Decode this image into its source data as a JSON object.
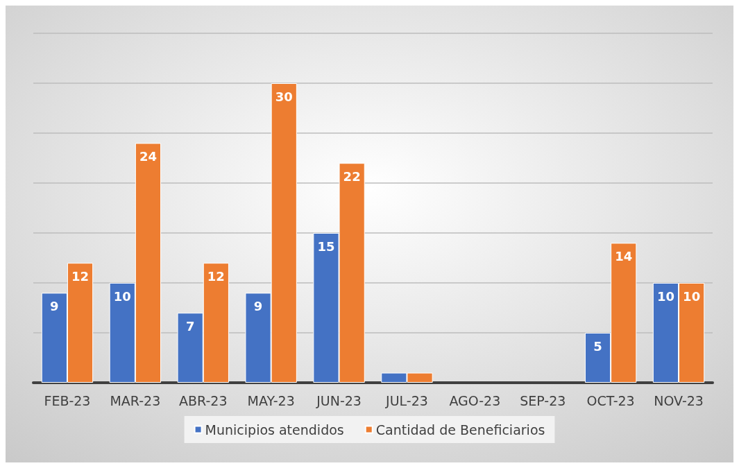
{
  "chart_data": {
    "type": "bar",
    "categories": [
      "FEB-23",
      "MAR-23",
      "ABR-23",
      "MAY-23",
      "JUN-23",
      "JUL-23",
      "AGO-23",
      "SEP-23",
      "OCT-23",
      "NOV-23"
    ],
    "series": [
      {
        "name": "Municipios atendidos",
        "color": "#4472c4",
        "values": [
          9,
          10,
          7,
          9,
          15,
          1,
          null,
          null,
          5,
          10
        ],
        "value_labels": [
          "9",
          "10",
          "7",
          "9",
          "15",
          null,
          null,
          null,
          "5",
          "10"
        ]
      },
      {
        "name": "Cantidad de Beneficiarios",
        "color": "#ed7d31",
        "values": [
          12,
          24,
          12,
          30,
          22,
          1,
          null,
          null,
          14,
          10
        ],
        "value_labels": [
          "12",
          "24",
          "12",
          "30",
          "22",
          null,
          null,
          null,
          "14",
          "10"
        ]
      }
    ],
    "ylim": [
      0,
      35
    ],
    "yticks": [
      {
        "value": 0,
        "label": null
      },
      {
        "value": 5,
        "label": null
      },
      {
        "value": 10,
        "label": null
      },
      {
        "value": 15,
        "label": null
      },
      {
        "value": 20,
        "label": null
      },
      {
        "value": 25,
        "label": null
      },
      {
        "value": 30,
        "label": null
      },
      {
        "value": 35,
        "label": null
      }
    ],
    "tick_labels": "x",
    "grid": "y",
    "legend": "bottom"
  }
}
